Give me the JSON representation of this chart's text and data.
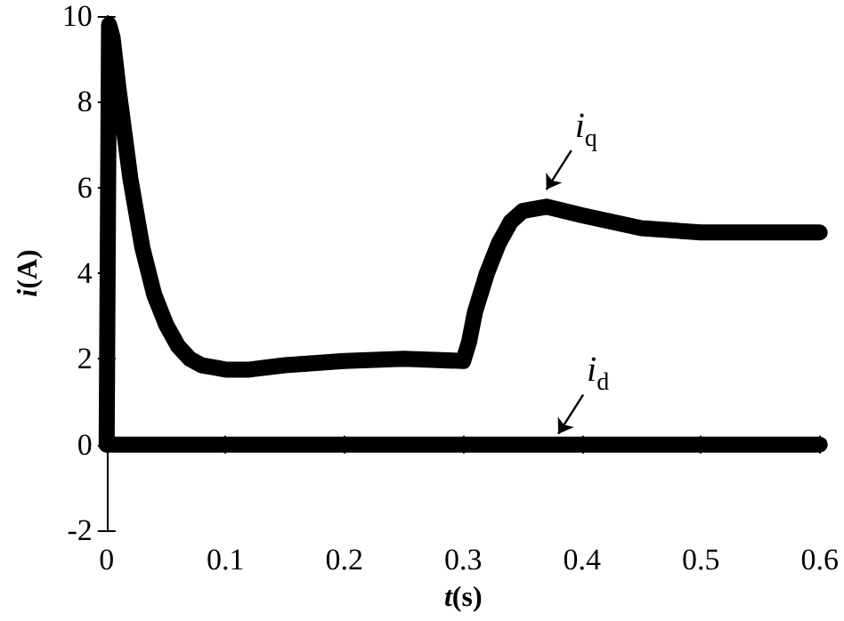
{
  "chart_data": {
    "type": "line",
    "xlabel": "t(s)",
    "ylabel": "i(A)",
    "xlim": [
      0,
      0.6
    ],
    "xticks": [
      0,
      0.1,
      0.2,
      0.3,
      0.4,
      0.5,
      0.6
    ],
    "ylim": [
      -2,
      10
    ],
    "yticks": [
      -2,
      0,
      2,
      4,
      6,
      8,
      10
    ],
    "grid": false,
    "line_style": "solid",
    "series": [
      {
        "color": "#000000",
        "x": [
          0,
          0.002,
          0.005,
          0.01,
          0.02,
          0.03,
          0.04,
          0.05,
          0.06,
          0.07,
          0.08,
          0.09,
          0.1,
          0.12,
          0.15,
          0.2,
          0.25,
          0.3,
          0.305,
          0.31,
          0.32,
          0.33,
          0.34,
          0.35,
          0.37,
          0.4,
          0.45,
          0.5,
          0.55,
          0.6
        ],
        "values": [
          0,
          9.8,
          9.5,
          8.3,
          6.2,
          4.6,
          3.5,
          2.8,
          2.3,
          2.0,
          1.85,
          1.8,
          1.75,
          1.75,
          1.85,
          1.95,
          2.0,
          1.95,
          2.4,
          3.1,
          4.0,
          4.7,
          5.2,
          5.45,
          5.55,
          5.35,
          5.05,
          4.95,
          4.95,
          4.95
        ]
      },
      {
        "color": "#000000",
        "x": [
          0,
          0.3,
          0.6
        ],
        "values": [
          0,
          0,
          0
        ]
      }
    ],
    "annotations": [
      {
        "text": "i$_{q}$",
        "x": 0.37,
        "y": 5.7
      },
      {
        "text": "i$_{d}$",
        "x": 0.38,
        "y": 0
      }
    ]
  }
}
